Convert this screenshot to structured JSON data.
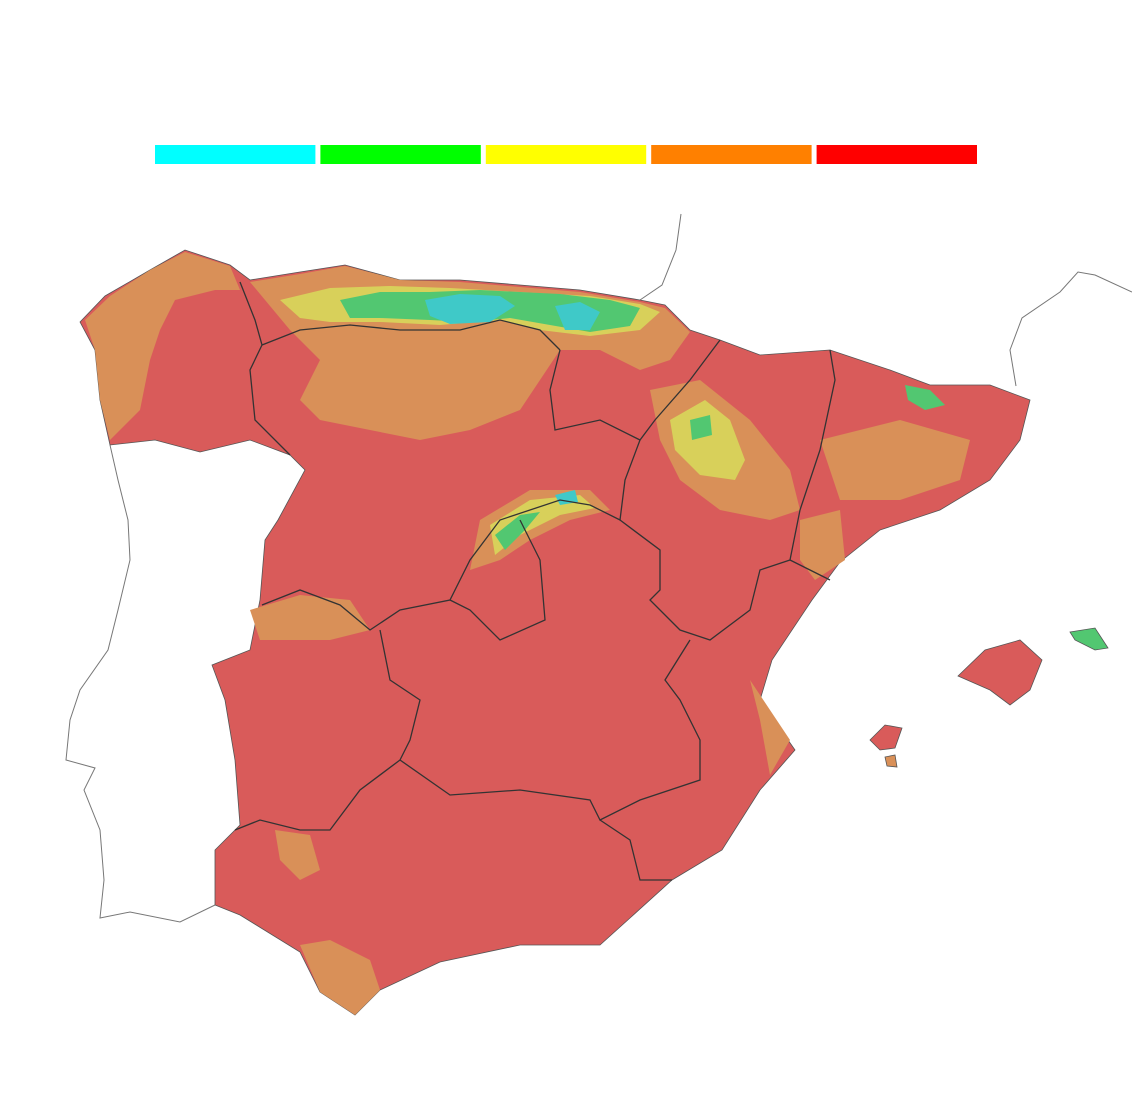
{
  "legend": {
    "colors": [
      "#00ffff",
      "#00ff00",
      "#ffff00",
      "#ff8000",
      "#ff0000"
    ]
  }
}
